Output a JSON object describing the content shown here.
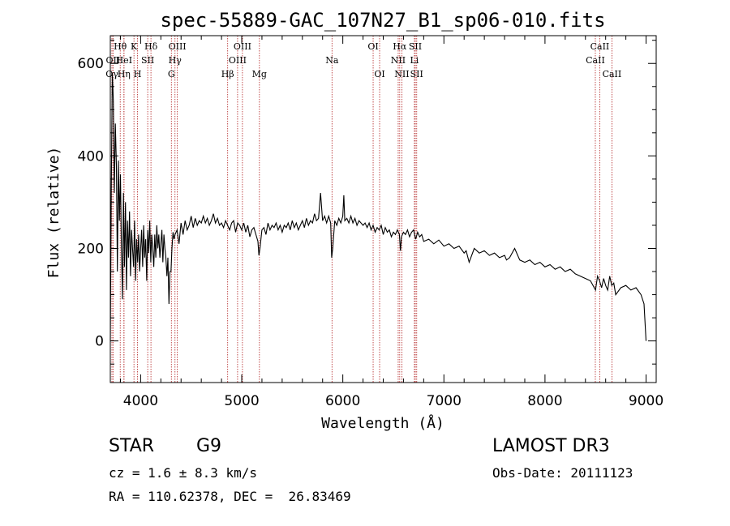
{
  "chart_data": {
    "type": "line",
    "title": "spec-55889-GAC_107N27_B1_sp06-010.fits",
    "xlabel": "Wavelength (Å)",
    "ylabel": "Flux (relative)",
    "xlim": [
      3700,
      9100
    ],
    "ylim": [
      -90,
      660
    ],
    "xticks": [
      4000,
      5000,
      6000,
      7000,
      8000,
      9000
    ],
    "xtick_labels": [
      "4000",
      "5000",
      "6000",
      "7000",
      "8000",
      "9000"
    ],
    "yticks": [
      0,
      200,
      400,
      600
    ],
    "ytick_labels": [
      "0",
      "200",
      "400",
      "600"
    ],
    "line_color": "#000000",
    "marker_color": "#b22222",
    "series": [
      {
        "name": "flux",
        "x": [
          3700,
          3710,
          3720,
          3730,
          3740,
          3750,
          3760,
          3770,
          3780,
          3790,
          3800,
          3810,
          3820,
          3830,
          3840,
          3850,
          3860,
          3870,
          3880,
          3890,
          3900,
          3910,
          3920,
          3930,
          3940,
          3950,
          3960,
          3970,
          3980,
          3990,
          4000,
          4010,
          4020,
          4030,
          4040,
          4050,
          4060,
          4070,
          4080,
          4090,
          4100,
          4110,
          4120,
          4130,
          4140,
          4150,
          4160,
          4170,
          4180,
          4190,
          4200,
          4210,
          4220,
          4230,
          4240,
          4250,
          4260,
          4270,
          4280,
          4290,
          4300,
          4310,
          4320,
          4330,
          4340,
          4360,
          4380,
          4400,
          4420,
          4440,
          4460,
          4480,
          4500,
          4520,
          4540,
          4560,
          4580,
          4600,
          4620,
          4640,
          4660,
          4680,
          4700,
          4720,
          4740,
          4760,
          4780,
          4800,
          4820,
          4840,
          4860,
          4880,
          4900,
          4920,
          4940,
          4960,
          4980,
          5000,
          5020,
          5040,
          5060,
          5080,
          5100,
          5120,
          5140,
          5160,
          5170,
          5180,
          5200,
          5220,
          5240,
          5260,
          5280,
          5300,
          5320,
          5340,
          5360,
          5380,
          5400,
          5420,
          5440,
          5460,
          5480,
          5500,
          5520,
          5540,
          5560,
          5580,
          5600,
          5620,
          5640,
          5660,
          5680,
          5700,
          5720,
          5740,
          5760,
          5780,
          5800,
          5820,
          5840,
          5860,
          5880,
          5890,
          5900,
          5920,
          5940,
          5960,
          5980,
          6000,
          6010,
          6020,
          6040,
          6060,
          6080,
          6100,
          6120,
          6140,
          6160,
          6180,
          6200,
          6220,
          6240,
          6260,
          6280,
          6300,
          6320,
          6340,
          6360,
          6380,
          6400,
          6420,
          6440,
          6460,
          6480,
          6500,
          6520,
          6540,
          6560,
          6570,
          6580,
          6600,
          6620,
          6640,
          6660,
          6680,
          6700,
          6720,
          6740,
          6760,
          6780,
          6800,
          6850,
          6900,
          6950,
          7000,
          7050,
          7100,
          7150,
          7200,
          7220,
          7250,
          7300,
          7350,
          7400,
          7450,
          7500,
          7550,
          7600,
          7620,
          7650,
          7700,
          7750,
          7800,
          7850,
          7900,
          7950,
          8000,
          8050,
          8100,
          8150,
          8200,
          8250,
          8300,
          8350,
          8400,
          8450,
          8500,
          8520,
          8540,
          8560,
          8580,
          8600,
          8620,
          8640,
          8660,
          8680,
          8700,
          8750,
          8800,
          8850,
          8900,
          8950,
          8980,
          9000
        ],
        "y": [
          0,
          330,
          580,
          520,
          320,
          470,
          380,
          150,
          390,
          260,
          360,
          200,
          90,
          320,
          160,
          300,
          110,
          260,
          180,
          280,
          140,
          240,
          200,
          160,
          260,
          130,
          220,
          170,
          230,
          150,
          200,
          240,
          160,
          250,
          180,
          220,
          130,
          240,
          190,
          260,
          170,
          230,
          200,
          160,
          230,
          180,
          250,
          200,
          230,
          180,
          210,
          240,
          170,
          230,
          200,
          180,
          140,
          180,
          80,
          150,
          150,
          200,
          235,
          220,
          230,
          240,
          210,
          255,
          230,
          260,
          240,
          250,
          270,
          245,
          265,
          250,
          260,
          255,
          270,
          255,
          265,
          250,
          260,
          275,
          255,
          265,
          250,
          255,
          245,
          260,
          250,
          240,
          255,
          260,
          235,
          255,
          250,
          240,
          255,
          235,
          250,
          225,
          240,
          245,
          230,
          215,
          185,
          200,
          240,
          245,
          230,
          255,
          240,
          250,
          245,
          255,
          240,
          250,
          235,
          250,
          245,
          255,
          240,
          260,
          245,
          255,
          240,
          250,
          260,
          245,
          265,
          250,
          260,
          255,
          275,
          260,
          265,
          320,
          260,
          270,
          255,
          270,
          255,
          180,
          200,
          260,
          250,
          265,
          255,
          270,
          315,
          260,
          265,
          255,
          270,
          255,
          265,
          250,
          260,
          255,
          250,
          255,
          245,
          255,
          240,
          250,
          235,
          245,
          240,
          250,
          230,
          245,
          235,
          240,
          225,
          235,
          230,
          240,
          230,
          195,
          225,
          235,
          230,
          240,
          225,
          235,
          240,
          220,
          235,
          225,
          230,
          215,
          220,
          210,
          218,
          205,
          210,
          200,
          205,
          190,
          195,
          170,
          200,
          190,
          195,
          185,
          190,
          180,
          185,
          175,
          180,
          200,
          175,
          170,
          175,
          165,
          170,
          160,
          165,
          155,
          160,
          150,
          155,
          145,
          140,
          135,
          130,
          110,
          140,
          130,
          115,
          135,
          120,
          110,
          140,
          120,
          125,
          100,
          115,
          120,
          110,
          115,
          100,
          80,
          0
        ]
      }
    ],
    "spectral_lines": [
      {
        "label": "Hθ",
        "wavelength": 3798,
        "row": 0
      },
      {
        "label": "OII",
        "wavelength": 3727,
        "row": 1
      },
      {
        "label": "Oγ",
        "wavelength": 3716,
        "row": 2
      },
      {
        "label": "HeI",
        "wavelength": 3835,
        "row": 1
      },
      {
        "label": "Hη",
        "wavelength": 3835,
        "row": 2
      },
      {
        "label": "K",
        "wavelength": 3934,
        "row": 0
      },
      {
        "label": "H",
        "wavelength": 3969,
        "row": 2
      },
      {
        "label": "SII",
        "wavelength": 4070,
        "row": 1
      },
      {
        "label": "Hδ",
        "wavelength": 4102,
        "row": 0
      },
      {
        "label": "OIII",
        "wavelength": 4363,
        "row": 0
      },
      {
        "label": "Hγ",
        "wavelength": 4340,
        "row": 1
      },
      {
        "label": "G",
        "wavelength": 4304,
        "row": 2
      },
      {
        "label": "OIII",
        "wavelength": 5007,
        "row": 0
      },
      {
        "label": "OIII",
        "wavelength": 4959,
        "row": 1
      },
      {
        "label": "Hβ",
        "wavelength": 4861,
        "row": 2
      },
      {
        "label": "Mg",
        "wavelength": 5175,
        "row": 2
      },
      {
        "label": "Na",
        "wavelength": 5893,
        "row": 1
      },
      {
        "label": "OI",
        "wavelength": 6300,
        "row": 0
      },
      {
        "label": "OI",
        "wavelength": 6364,
        "row": 2
      },
      {
        "label": "Hα",
        "wavelength": 6563,
        "row": 0
      },
      {
        "label": "NII",
        "wavelength": 6548,
        "row": 1
      },
      {
        "label": "NII",
        "wavelength": 6584,
        "row": 2
      },
      {
        "label": "SII",
        "wavelength": 6717,
        "row": 0
      },
      {
        "label": "Li",
        "wavelength": 6708,
        "row": 1
      },
      {
        "label": "SII",
        "wavelength": 6731,
        "row": 2
      },
      {
        "label": "CaII",
        "wavelength": 8542,
        "row": 0
      },
      {
        "label": "CaII",
        "wavelength": 8498,
        "row": 1
      },
      {
        "label": "CaII",
        "wavelength": 8662,
        "row": 2
      }
    ]
  },
  "info": {
    "class": "STAR",
    "subclass": "G9",
    "survey": "LAMOST DR3",
    "cz": "cz = 1.6 ± 8.3 km/s",
    "obs_date": "Obs-Date: 20111123",
    "coords": "RA = 110.62378, DEC =  26.83469"
  }
}
